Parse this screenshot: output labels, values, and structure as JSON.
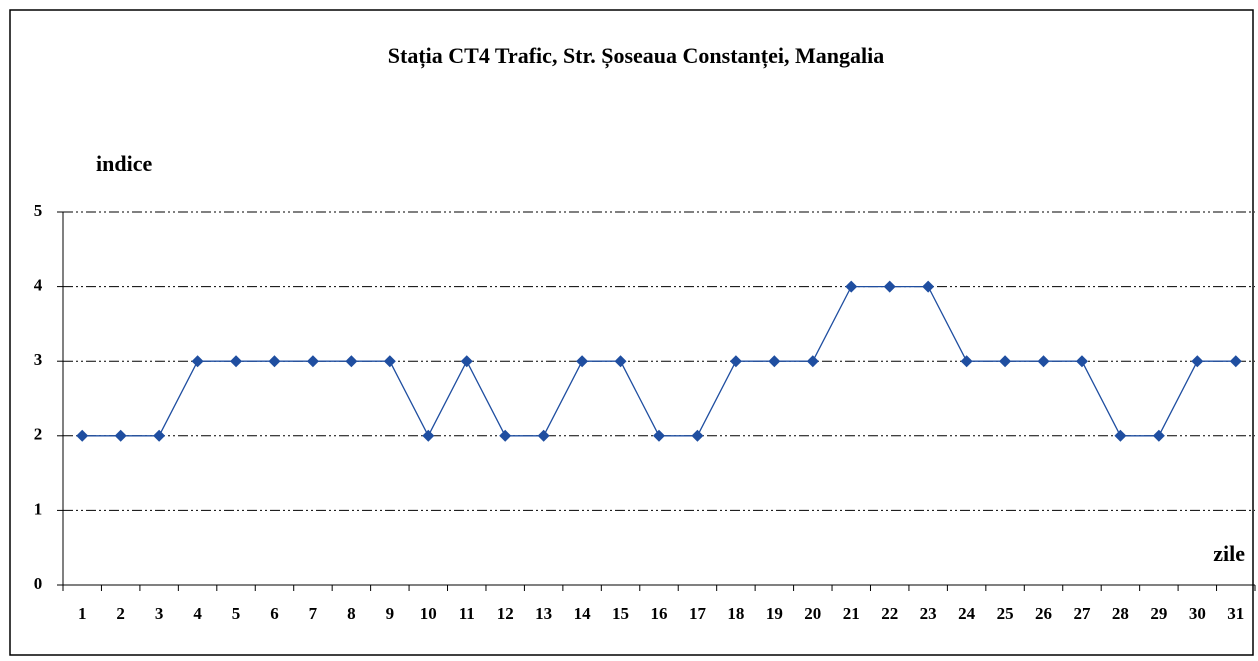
{
  "chart_data": {
    "type": "line",
    "title": "Stația CT4 Trafic, Str. Șoseaua Constanței, Mangalia",
    "y_label": "indice",
    "x_label": "zile",
    "categories": [
      "1",
      "2",
      "3",
      "4",
      "5",
      "6",
      "7",
      "8",
      "9",
      "10",
      "11",
      "12",
      "13",
      "14",
      "15",
      "16",
      "17",
      "18",
      "19",
      "20",
      "21",
      "22",
      "23",
      "24",
      "25",
      "26",
      "27",
      "28",
      "29",
      "30",
      "31"
    ],
    "series": [
      {
        "name": "indice",
        "color": "#1f4ea0",
        "values": [
          2,
          2,
          2,
          3,
          3,
          3,
          3,
          3,
          3,
          2,
          3,
          2,
          2,
          3,
          3,
          2,
          2,
          3,
          3,
          3,
          4,
          4,
          4,
          3,
          3,
          3,
          3,
          2,
          2,
          3,
          3
        ]
      }
    ],
    "ylim": [
      0,
      5
    ],
    "yticks": [
      0,
      1,
      2,
      3,
      4,
      5
    ],
    "grid": true
  }
}
